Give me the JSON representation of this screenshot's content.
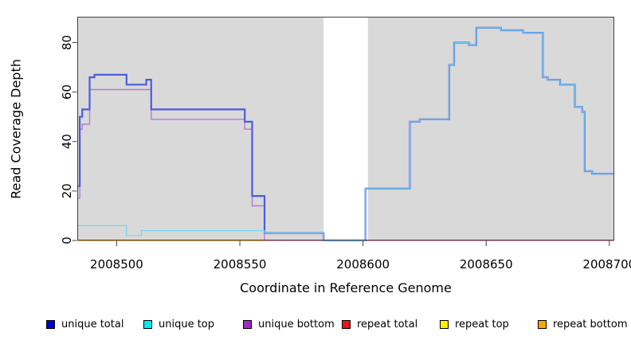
{
  "chart_data": {
    "type": "line",
    "subtype": "step-after",
    "title": "",
    "xlabel": "Coordinate in Reference Genome",
    "ylabel": "Read Coverage Depth",
    "xlim": [
      2008484,
      2008702
    ],
    "ylim": [
      0,
      90
    ],
    "x_ticks": [
      "2008500",
      "2008550",
      "2008600",
      "2008650",
      "2008700"
    ],
    "x_tick_values": [
      2008500,
      2008550,
      2008600,
      2008650,
      2008700
    ],
    "y_ticks": [
      "0",
      "20",
      "40",
      "60",
      "80"
    ],
    "y_tick_values": [
      0,
      20,
      40,
      60,
      80
    ],
    "grid": false,
    "plot_bg": "#d9d9d9",
    "box_color": "#404040",
    "gap_region": {
      "x_start": 2008584,
      "x_end": 2008602,
      "color": "#ffffff"
    },
    "series": [
      {
        "name": "repeat total",
        "color": "#e0537a",
        "line_width": 1.2,
        "steps": [
          [
            2008484,
            0
          ],
          [
            2008702,
            0
          ]
        ]
      },
      {
        "name": "repeat top",
        "color": "#f5e626",
        "line_width": 1.0,
        "steps": [
          [
            2008484,
            0
          ],
          [
            2008560,
            0
          ]
        ]
      },
      {
        "name": "repeat bottom",
        "color": "#ffa11f",
        "line_width": 1.6,
        "steps": [
          [
            2008484,
            0
          ],
          [
            2008560,
            0
          ]
        ]
      },
      {
        "name": "unique bottom",
        "color": "#b779d8",
        "line_width": 1.4,
        "steps": [
          [
            2008484,
            17
          ],
          [
            2008485,
            45
          ],
          [
            2008486,
            47
          ],
          [
            2008489,
            61
          ],
          [
            2008514,
            49
          ],
          [
            2008552,
            45
          ],
          [
            2008555,
            14
          ],
          [
            2008560,
            0
          ]
        ]
      },
      {
        "name": "unique total",
        "color": "#4a5ce0",
        "line_width": 2.2,
        "steps": [
          [
            2008484,
            22
          ],
          [
            2008485,
            50
          ],
          [
            2008486,
            53
          ],
          [
            2008489,
            66
          ],
          [
            2008491,
            67
          ],
          [
            2008504,
            63
          ],
          [
            2008512,
            65
          ],
          [
            2008514,
            53
          ],
          [
            2008552,
            48
          ],
          [
            2008555,
            18
          ],
          [
            2008560,
            3
          ],
          [
            2008584,
            0
          ],
          [
            2008601,
            21
          ],
          [
            2008619,
            48
          ],
          [
            2008623,
            49
          ],
          [
            2008635,
            71
          ],
          [
            2008637,
            80
          ],
          [
            2008643,
            79
          ],
          [
            2008646,
            86
          ],
          [
            2008656,
            85
          ],
          [
            2008665,
            84
          ],
          [
            2008673,
            66
          ],
          [
            2008675,
            65
          ],
          [
            2008680,
            63
          ],
          [
            2008686,
            54
          ],
          [
            2008689,
            52
          ],
          [
            2008690,
            28
          ],
          [
            2008693,
            27
          ],
          [
            2008702,
            27
          ]
        ]
      },
      {
        "name": "unique top",
        "color": "#74d4f0",
        "line_width": 1.2,
        "steps": [
          [
            2008484,
            6
          ],
          [
            2008504,
            2
          ],
          [
            2008510,
            4
          ],
          [
            2008560,
            3
          ],
          [
            2008584,
            0
          ],
          [
            2008601,
            21
          ],
          [
            2008619,
            48
          ],
          [
            2008623,
            49
          ],
          [
            2008635,
            71
          ],
          [
            2008637,
            80
          ],
          [
            2008643,
            79
          ],
          [
            2008646,
            86
          ],
          [
            2008656,
            85
          ],
          [
            2008665,
            84
          ],
          [
            2008673,
            66
          ],
          [
            2008675,
            65
          ],
          [
            2008680,
            63
          ],
          [
            2008686,
            54
          ],
          [
            2008689,
            52
          ],
          [
            2008690,
            28
          ],
          [
            2008693,
            27
          ],
          [
            2008702,
            27
          ]
        ]
      }
    ],
    "legend_position": "bottom",
    "legend": [
      {
        "label": "unique total",
        "color": "#0000dd"
      },
      {
        "label": "unique top",
        "color": "#00eeee"
      },
      {
        "label": "unique bottom",
        "color": "#9d2cc8"
      },
      {
        "label": "repeat total",
        "color": "#ee1111"
      },
      {
        "label": "repeat top",
        "color": "#ffee00"
      },
      {
        "label": "repeat bottom",
        "color": "#ffa500"
      }
    ]
  }
}
